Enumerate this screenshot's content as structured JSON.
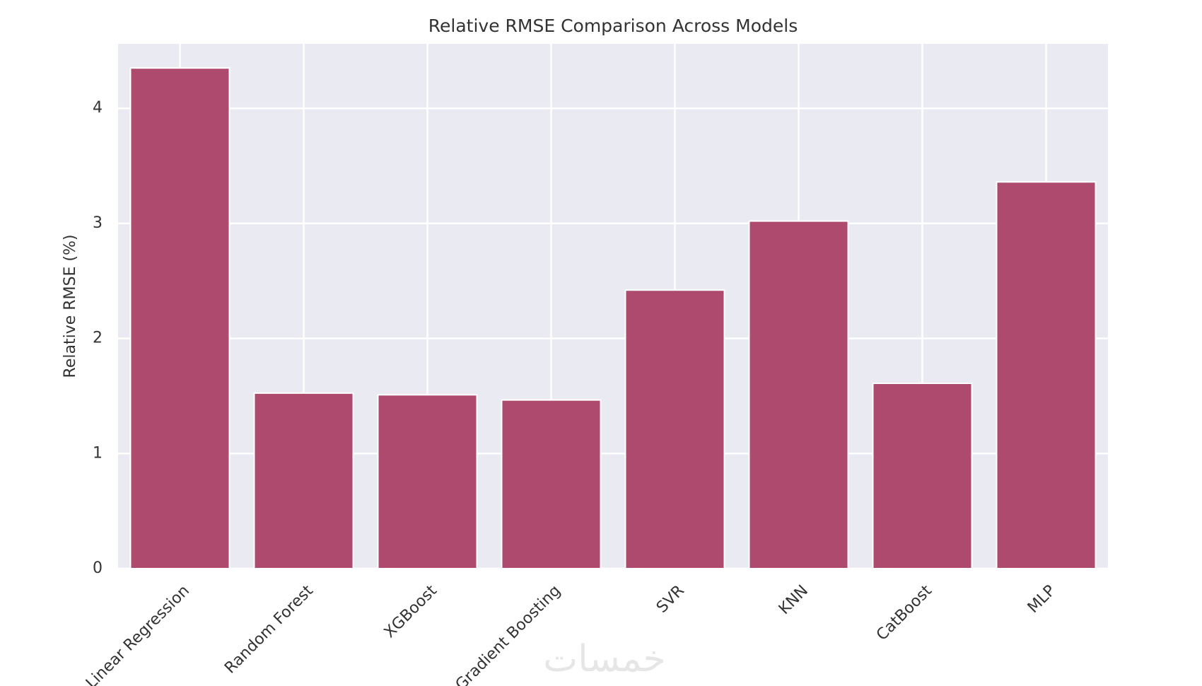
{
  "chart_data": {
    "type": "bar",
    "title": "Relative RMSE Comparison Across Models",
    "y_label": "Relative RMSE (%)",
    "categories": [
      "Linear Regression",
      "Random Forest",
      "XGBoost",
      "Gradient Boosting",
      "SVR",
      "KNN",
      "CatBoost",
      "MLP"
    ],
    "values": [
      4.35,
      1.525,
      1.51,
      1.465,
      2.42,
      3.02,
      1.61,
      3.36
    ],
    "color": "#ad4a6e",
    "ylim": [
      0,
      4.56
    ],
    "yticks": [
      0,
      1,
      2,
      3,
      4
    ],
    "grid": true,
    "watermark": "خمسات"
  }
}
